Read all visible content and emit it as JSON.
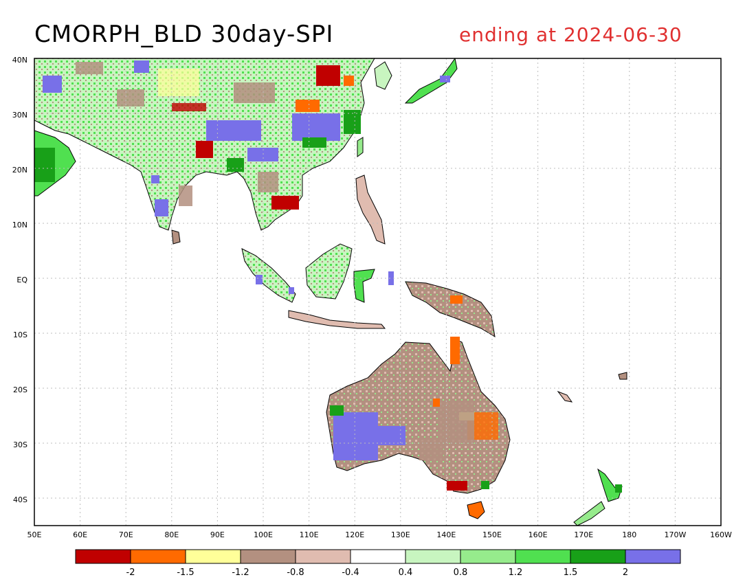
{
  "title": "CMORPH_BLD 30day-SPI",
  "subtitle": "ending at 2024-06-30",
  "colors": {
    "title": "#000000",
    "subtitle": "#e03030",
    "ocean": "#ffffff",
    "coast": "#000000",
    "grid": "#bdbdbd"
  },
  "lat_labels": [
    "40N",
    "30N",
    "20N",
    "10N",
    "EQ",
    "10S",
    "20S",
    "30S",
    "40S"
  ],
  "lon_labels": [
    "50E",
    "60E",
    "70E",
    "80E",
    "90E",
    "100E",
    "110E",
    "120E",
    "130E",
    "140E",
    "150E",
    "160E",
    "170E",
    "180",
    "170W",
    "160W"
  ],
  "colorbar": {
    "colors": [
      "#c00000",
      "#ff6a00",
      "#ffff99",
      "#b39080",
      "#e0bcb0",
      "#ffffff",
      "#c8f5c0",
      "#96eb8c",
      "#50e050",
      "#18a018",
      "#7870e8"
    ],
    "labels": [
      "-2",
      "-1.5",
      "-1.2",
      "-0.8",
      "-0.4",
      "0.4",
      "0.8",
      "1.2",
      "1.5",
      "2"
    ]
  }
}
